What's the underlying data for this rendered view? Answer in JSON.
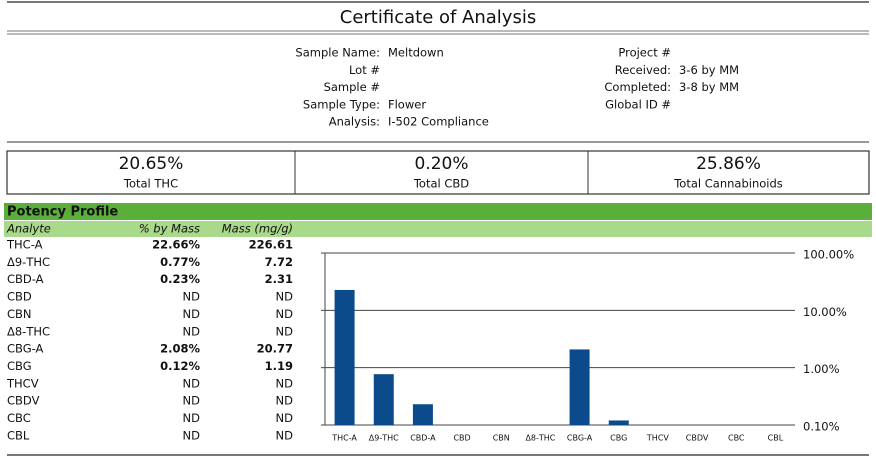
{
  "title": "Certificate of Analysis",
  "sample_info": [
    {
      "label": "Sample Name:",
      "value": "Meltdown"
    },
    {
      "label": "Lot #"
    },
    {
      "label": "Sample #"
    },
    {
      "label": "Sample Type:",
      "value": "Flower"
    },
    {
      "label": "Analysis:",
      "value": "I-502 Compliance"
    }
  ],
  "lab_info": [
    {
      "label": "Project #"
    },
    {
      "label": "Received:",
      "value": "3-6 by MM"
    },
    {
      "label": "Completed:",
      "value": "3-8 by MM"
    },
    {
      "label": "Global ID #"
    }
  ],
  "summary": [
    {
      "value": "20.65%",
      "label": "Total THC"
    },
    {
      "value": "0.20%",
      "label": "Total CBD"
    },
    {
      "value": "25.86%",
      "label": "Total Cannabinoids"
    }
  ],
  "potency": {
    "title": "Potency Profile",
    "columns": [
      "Analyte",
      "% by Mass",
      "Mass (mg/g)"
    ],
    "rows": [
      [
        "THC-A",
        "22.66%",
        "226.61"
      ],
      [
        "Δ9-THC",
        "0.77%",
        "7.72"
      ],
      [
        "CBD-A",
        "0.23%",
        "2.31"
      ],
      [
        "CBD",
        "ND",
        "ND"
      ],
      [
        "CBN",
        "ND",
        "ND"
      ],
      [
        "Δ8-THC",
        "ND",
        "ND"
      ],
      [
        "CBG-A",
        "2.08%",
        "20.77"
      ],
      [
        "CBG",
        "0.12%",
        "1.19"
      ],
      [
        "THCV",
        "ND",
        "ND"
      ],
      [
        "CBDV",
        "ND",
        "ND"
      ],
      [
        "CBC",
        "ND",
        "ND"
      ],
      [
        "CBL",
        "ND",
        "ND"
      ]
    ]
  },
  "chart_data": {
    "type": "bar",
    "log_scale": true,
    "color": "#0b4a8b",
    "grid": true,
    "categories": [
      "THC-A",
      "Δ9-THC",
      "CBD-A",
      "CBD",
      "CBN",
      "Δ8-THC",
      "CBG-A",
      "CBG",
      "THCV",
      "CBDV",
      "CBC",
      "CBL"
    ],
    "values": [
      22.66,
      0.77,
      0.23,
      null,
      null,
      null,
      2.08,
      0.12,
      null,
      null,
      null,
      null
    ],
    "ylim": [
      0.1,
      100
    ],
    "yticks": [
      {
        "value": 0.1,
        "label": "0.10%"
      },
      {
        "value": 1,
        "label": "1.00%"
      },
      {
        "value": 10,
        "label": "10.00%"
      },
      {
        "value": 100,
        "label": "100.00%"
      }
    ]
  }
}
